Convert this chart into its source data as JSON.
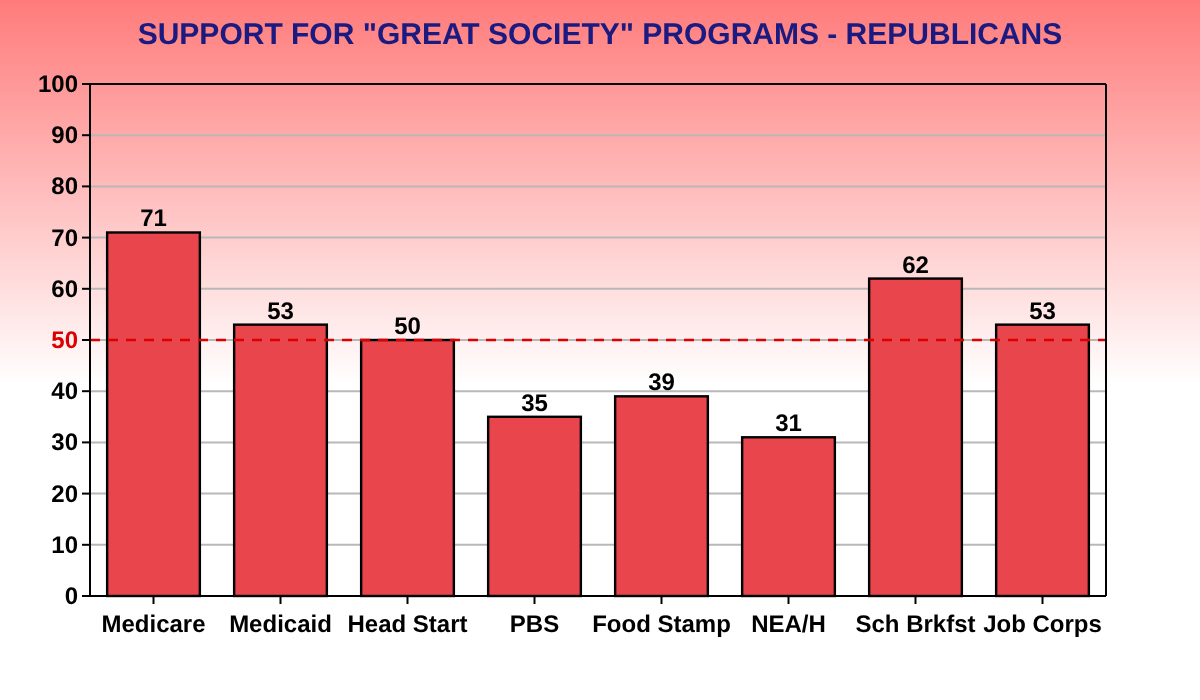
{
  "chart_data": {
    "type": "bar",
    "title": "SUPPORT FOR \"GREAT SOCIETY\" PROGRAMS - REPUBLICANS",
    "categories": [
      "Medicare",
      "Medicaid",
      "Head Start",
      "PBS",
      "Food Stamp",
      "NEA/H",
      "Sch Brkfst",
      "Job Corps"
    ],
    "values": [
      71,
      53,
      50,
      35,
      39,
      31,
      62,
      53
    ],
    "color": "#e8454c",
    "ylim": [
      0,
      100
    ],
    "yticks": [
      0,
      10,
      20,
      30,
      40,
      50,
      60,
      70,
      80,
      90,
      100
    ],
    "grid": "y",
    "data_labels": true,
    "ref_lines": [
      {
        "axis": "y",
        "value": 50,
        "color": "#dd0000",
        "line_style": "dashed"
      }
    ]
  }
}
